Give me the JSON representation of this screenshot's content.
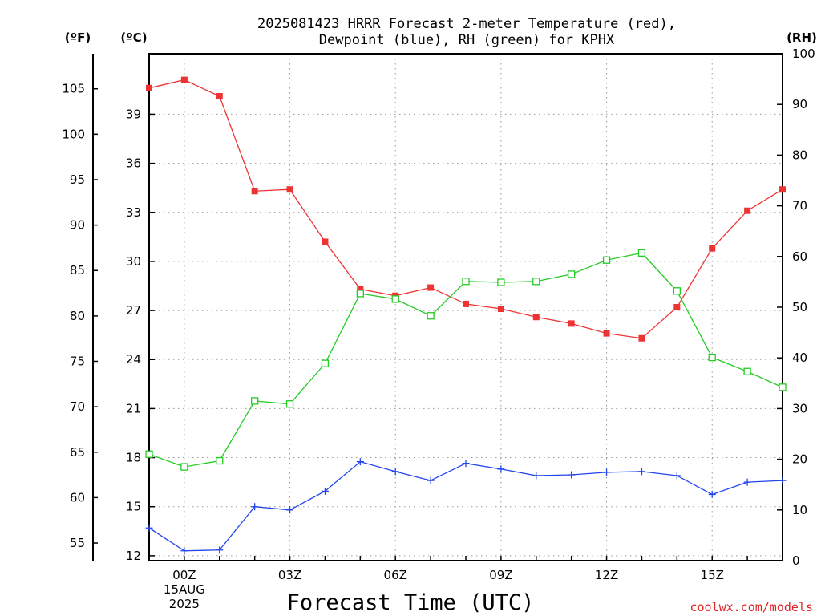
{
  "chart_data": {
    "type": "line",
    "title": [
      "2025081423 HRRR Forecast 2-meter Temperature (red),",
      "Dewpoint (blue), RH (green) for KPHX"
    ],
    "xlabel": "Forecast Time (UTC)",
    "credit": "coolwx.com/models",
    "unit_labels": {
      "fahrenheit": "(ºF)",
      "celsius": "(ºC)",
      "rh": "(RH)"
    },
    "x_hours": [
      -1,
      0,
      1,
      2,
      3,
      4,
      5,
      6,
      7,
      8,
      9,
      10,
      11,
      12,
      13,
      14,
      15,
      16,
      17
    ],
    "x_ticks": [
      {
        "hour": 0,
        "lines": [
          "00Z",
          "15AUG",
          "2025"
        ]
      },
      {
        "hour": 3,
        "lines": [
          "03Z"
        ]
      },
      {
        "hour": 6,
        "lines": [
          "06Z"
        ]
      },
      {
        "hour": 9,
        "lines": [
          "09Z"
        ]
      },
      {
        "hour": 12,
        "lines": [
          "12Z"
        ]
      },
      {
        "hour": 15,
        "lines": [
          "15Z"
        ]
      }
    ],
    "xlim": [
      -1,
      17
    ],
    "y_celsius": {
      "lim": [
        11.7,
        42.7
      ],
      "ticks": [
        12,
        15,
        18,
        21,
        24,
        27,
        30,
        33,
        36,
        39
      ]
    },
    "y_fahrenheit": {
      "ticks": [
        55,
        60,
        65,
        70,
        75,
        80,
        85,
        90,
        95,
        100,
        105
      ]
    },
    "y_rh": {
      "lim": [
        0,
        100
      ],
      "ticks": [
        0,
        10,
        20,
        30,
        40,
        50,
        60,
        70,
        80,
        90,
        100
      ]
    },
    "grid": true,
    "series": [
      {
        "name": "Temperature",
        "axis": "celsius",
        "color": "#ee3333",
        "marker": "filled-square",
        "values": [
          40.6,
          41.1,
          40.1,
          34.3,
          34.4,
          31.2,
          28.3,
          27.9,
          28.4,
          27.4,
          27.1,
          26.6,
          26.2,
          25.6,
          25.3,
          27.2,
          30.8,
          33.1,
          34.4
        ]
      },
      {
        "name": "Dewpoint",
        "axis": "celsius",
        "color": "#2244ee",
        "marker": "plus",
        "values": [
          13.7,
          12.3,
          12.35,
          15.0,
          14.8,
          15.95,
          17.75,
          17.15,
          16.6,
          17.65,
          17.3,
          16.9,
          16.95,
          17.1,
          17.15,
          16.9,
          15.75,
          16.5,
          16.6
        ]
      },
      {
        "name": "RH",
        "axis": "rh",
        "color": "#22cc22",
        "marker": "open-square",
        "values": [
          21,
          18.5,
          19.7,
          31.5,
          30.9,
          38.9,
          52.7,
          51.6,
          48.3,
          55.1,
          54.9,
          55.1,
          56.5,
          59.3,
          60.7,
          53.2,
          40.1,
          37.3,
          34.2
        ]
      }
    ]
  }
}
